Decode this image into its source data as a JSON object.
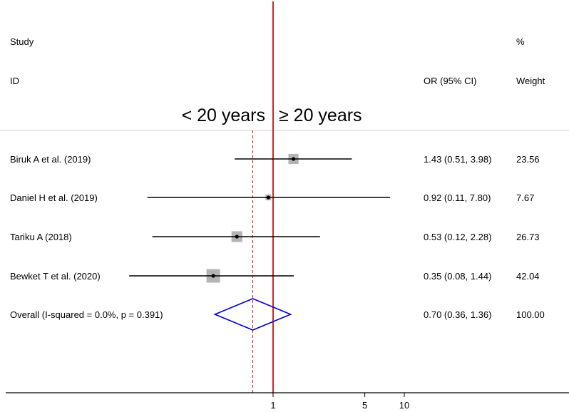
{
  "header": {
    "study_label": "Study",
    "id_label": "ID",
    "effect_label": "OR (95% CI)",
    "weight_pct_label": "%",
    "weight_label": "Weight"
  },
  "direction_labels": {
    "left": "< 20 years",
    "right": "≥ 20 years"
  },
  "colors": {
    "null_line": "#e02020",
    "pooled_line": "#8b2e2e",
    "diamond": "#0000cc",
    "box": "#b4b4b4"
  },
  "chart_data": {
    "type": "forest",
    "scale": "log",
    "xlim": [
      0.17,
      10
    ],
    "x_ticks": [
      1,
      5,
      10
    ],
    "x_tick_labels": [
      "1",
      "5",
      "10"
    ],
    "null_value": 1,
    "studies": [
      {
        "label": "Biruk A et al. (2019)",
        "or": 1.43,
        "lower": 0.51,
        "upper": 3.98,
        "ci_text": "1.43 (0.51, 3.98)",
        "weight": 23.56,
        "weight_text": "23.56"
      },
      {
        "label": "Daniel H et al. (2019)",
        "or": 0.92,
        "lower": 0.11,
        "upper": 7.8,
        "ci_text": "0.92 (0.11, 7.80)",
        "weight": 7.67,
        "weight_text": "7.67"
      },
      {
        "label": "Tariku A  (2018)",
        "or": 0.53,
        "lower": 0.12,
        "upper": 2.28,
        "ci_text": "0.53 (0.12, 2.28)",
        "weight": 26.73,
        "weight_text": "26.73"
      },
      {
        "label": "Bewket T et al. (2020)",
        "or": 0.35,
        "lower": 0.08,
        "upper": 1.44,
        "ci_text": "0.35 (0.08, 1.44)",
        "weight": 42.04,
        "weight_text": "42.04"
      }
    ],
    "overall": {
      "label": "Overall  (I-squared = 0.0%, p = 0.391)",
      "or": 0.7,
      "lower": 0.36,
      "upper": 1.36,
      "ci_text": "0.70 (0.36, 1.36)",
      "weight_text": "100.00"
    }
  }
}
